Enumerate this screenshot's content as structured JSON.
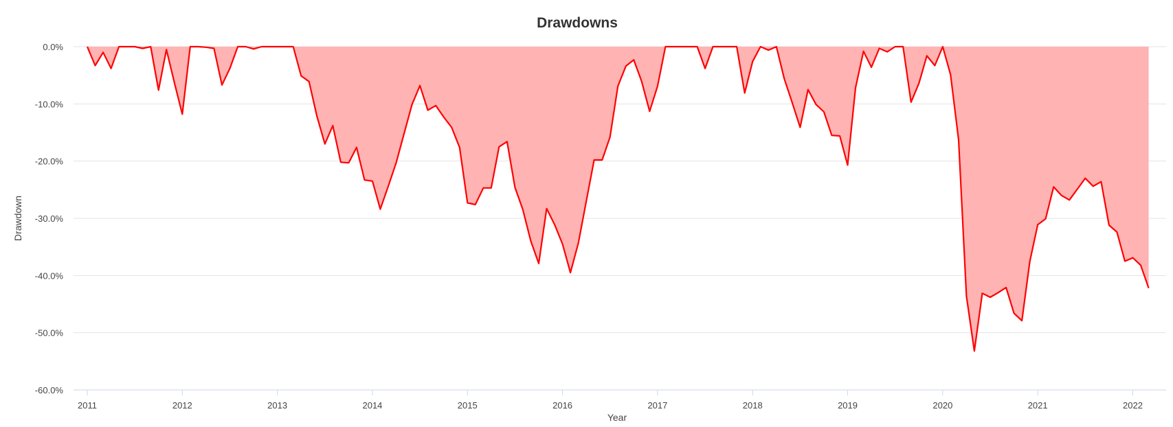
{
  "chart_data": {
    "type": "area",
    "title": "Drawdowns",
    "xlabel": "Year",
    "ylabel": "Drawdown",
    "ylim": [
      -60,
      0
    ],
    "y_ticks": [
      0,
      -10,
      -20,
      -30,
      -40,
      -50,
      -60
    ],
    "y_tick_labels": [
      "0.0%",
      "-10.0%",
      "-20.0%",
      "-30.0%",
      "-40.0%",
      "-50.0%",
      "-60.0%"
    ],
    "xlim": [
      2011.0,
      2022.17
    ],
    "x_ticks": [
      2011,
      2012,
      2013,
      2014,
      2015,
      2016,
      2017,
      2018,
      2019,
      2020,
      2021,
      2022
    ],
    "x_tick_labels": [
      "2011",
      "2012",
      "2013",
      "2014",
      "2015",
      "2016",
      "2017",
      "2018",
      "2019",
      "2020",
      "2021",
      "2022"
    ],
    "grid": true,
    "legend": "none",
    "colors": {
      "line": "#ff0000",
      "fill": "#ffb3b3"
    },
    "series": [
      {
        "x": [
          2011.0,
          2011.083,
          2011.167,
          2011.25,
          2011.333,
          2011.417,
          2011.5,
          2011.583,
          2011.667,
          2011.75,
          2011.833,
          2011.917,
          2012.0,
          2012.083,
          2012.167,
          2012.25,
          2012.333,
          2012.417,
          2012.5,
          2012.583,
          2012.667,
          2012.75,
          2012.833,
          2012.917,
          2013.0,
          2013.083,
          2013.167,
          2013.25,
          2013.333,
          2013.417,
          2013.5,
          2013.583,
          2013.667,
          2013.75,
          2013.833,
          2013.917,
          2014.0,
          2014.083,
          2014.167,
          2014.25,
          2014.333,
          2014.417,
          2014.5,
          2014.583,
          2014.667,
          2014.75,
          2014.833,
          2014.917,
          2015.0,
          2015.083,
          2015.167,
          2015.25,
          2015.333,
          2015.417,
          2015.5,
          2015.583,
          2015.667,
          2015.75,
          2015.833,
          2015.917,
          2016.0,
          2016.083,
          2016.167,
          2016.25,
          2016.333,
          2016.417,
          2016.5,
          2016.583,
          2016.667,
          2016.75,
          2016.833,
          2016.917,
          2017.0,
          2017.083,
          2017.167,
          2017.25,
          2017.333,
          2017.417,
          2017.5,
          2017.583,
          2017.667,
          2017.75,
          2017.833,
          2017.917,
          2018.0,
          2018.083,
          2018.167,
          2018.25,
          2018.333,
          2018.417,
          2018.5,
          2018.583,
          2018.667,
          2018.75,
          2018.833,
          2018.917,
          2019.0,
          2019.083,
          2019.167,
          2019.25,
          2019.333,
          2019.417,
          2019.5,
          2019.583,
          2019.667,
          2019.75,
          2019.833,
          2019.917,
          2020.0,
          2020.083,
          2020.167,
          2020.25,
          2020.333,
          2020.417,
          2020.5,
          2020.583,
          2020.667,
          2020.75,
          2020.833,
          2020.917,
          2021.0,
          2021.083,
          2021.167,
          2021.25,
          2021.333,
          2021.417,
          2021.5,
          2021.583,
          2021.667,
          2021.75,
          2021.833,
          2021.917,
          2022.0,
          2022.083,
          2022.167
        ],
        "y": [
          0,
          -3.3,
          -1.0,
          -3.8,
          0,
          0,
          0,
          -0.3,
          0,
          -7.6,
          -0.5,
          -6.3,
          -11.8,
          0,
          0,
          -0.1,
          -0.3,
          -6.7,
          -3.8,
          0,
          0,
          -0.4,
          0,
          0,
          0,
          0,
          0,
          -5.1,
          -6.1,
          -12.2,
          -17.0,
          -13.8,
          -20.2,
          -20.3,
          -17.6,
          -23.3,
          -23.5,
          -28.4,
          -24.4,
          -20.3,
          -15.2,
          -10.1,
          -6.8,
          -11.1,
          -10.3,
          -12.3,
          -14.1,
          -17.6,
          -27.3,
          -27.6,
          -24.7,
          -24.7,
          -17.5,
          -16.6,
          -24.6,
          -28.5,
          -34.0,
          -37.9,
          -28.3,
          -31.1,
          -34.5,
          -39.5,
          -34.3,
          -27.0,
          -19.8,
          -19.8,
          -15.8,
          -6.9,
          -3.4,
          -2.3,
          -6.1,
          -11.3,
          -6.9,
          0,
          0,
          0,
          0,
          0,
          -3.8,
          0,
          0,
          0,
          0,
          -8.1,
          -2.6,
          0,
          -0.6,
          0,
          -5.6,
          -9.8,
          -14.1,
          -7.5,
          -10.1,
          -11.4,
          -15.5,
          -15.6,
          -20.7,
          -7.2,
          -0.8,
          -3.6,
          -0.3,
          -0.9,
          0,
          0,
          -9.7,
          -6.4,
          -1.6,
          -3.3,
          0,
          -4.9,
          -16.3,
          -43.6,
          -53.2,
          -43.1,
          -43.8,
          -43.0,
          -42.1,
          -46.6,
          -47.9,
          -37.5,
          -31.1,
          -30.1,
          -24.5,
          -26.0,
          -26.8,
          -24.9,
          -23.0,
          -24.4,
          -23.6,
          -31.2,
          -32.4,
          -37.5,
          -36.9,
          -38.2,
          -42.2
        ]
      }
    ]
  }
}
